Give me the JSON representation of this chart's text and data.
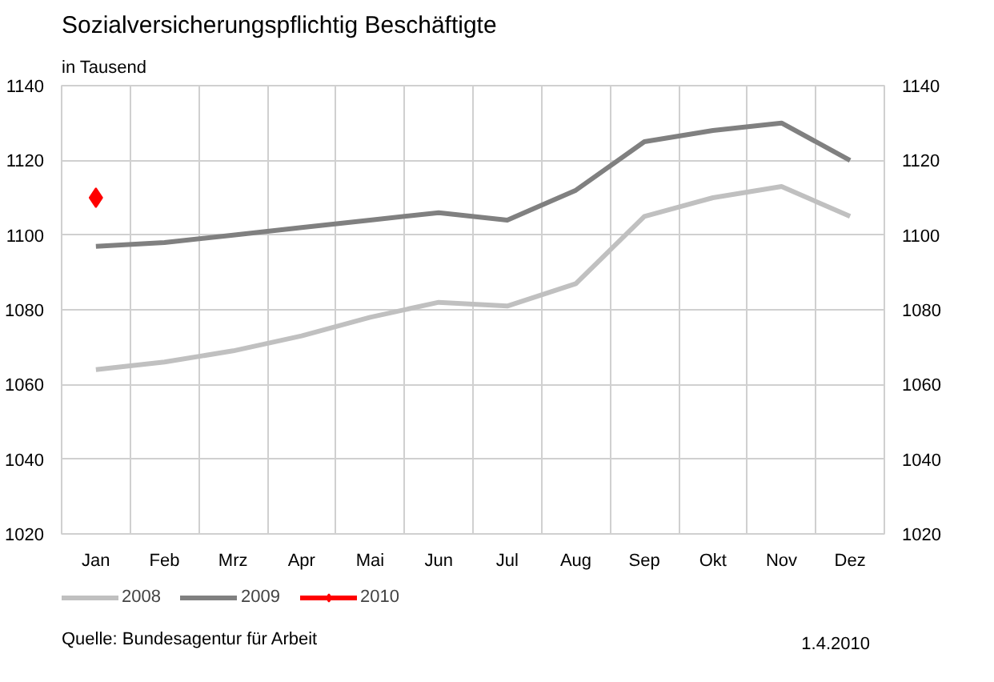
{
  "chart_data": {
    "type": "line",
    "title": "Sozialversicherungspflichtig Beschäftigte",
    "subtitle": "in Tausend",
    "categories": [
      "Jan",
      "Feb",
      "Mrz",
      "Apr",
      "Mai",
      "Jun",
      "Jul",
      "Aug",
      "Sep",
      "Okt",
      "Nov",
      "Dez"
    ],
    "series": [
      {
        "name": "2008",
        "color": "#c0c0c0",
        "marker": "none",
        "values": [
          1064,
          1066,
          1069,
          1073,
          1078,
          1082,
          1081,
          1087,
          1105,
          1110,
          1113,
          1105
        ]
      },
      {
        "name": "2009",
        "color": "#808080",
        "marker": "none",
        "values": [
          1097,
          1098,
          1100,
          1102,
          1104,
          1106,
          1104,
          1112,
          1125,
          1128,
          1130,
          1120
        ]
      },
      {
        "name": "2010",
        "color": "#ff0000",
        "marker": "diamond",
        "values": [
          1110,
          null,
          null,
          null,
          null,
          null,
          null,
          null,
          null,
          null,
          null,
          null
        ]
      }
    ],
    "ylim": [
      1020,
      1140
    ],
    "yticks": [
      1020,
      1040,
      1060,
      1080,
      1100,
      1120,
      1140
    ],
    "y2lim": [
      1020,
      1140
    ],
    "y2ticks": [
      1020,
      1040,
      1060,
      1080,
      1100,
      1120,
      1140
    ],
    "grid": true,
    "legend": "bottom",
    "line_style": "solid",
    "annotations": [
      "Quelle: Bundesagentur für Arbeit",
      "1.4.2010"
    ]
  }
}
